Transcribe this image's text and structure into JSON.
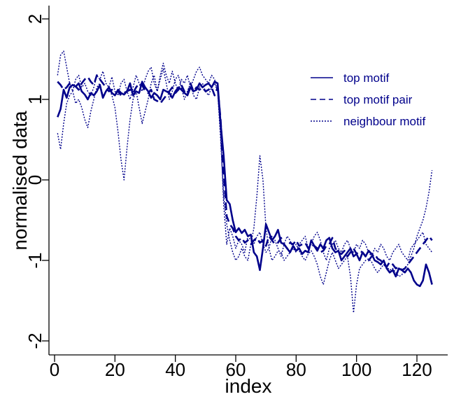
{
  "chart_data": {
    "type": "line",
    "xlabel": "index",
    "ylabel": "normalised data",
    "xlim": [
      -2,
      130
    ],
    "ylim": [
      -2.15,
      2.15
    ],
    "xticks": [
      0,
      20,
      40,
      60,
      80,
      100,
      120
    ],
    "yticks": [
      -2,
      -1,
      0,
      1,
      2
    ],
    "grid": false,
    "legend_position": "top-right",
    "color": "#00008B",
    "series": [
      {
        "name": "top motif",
        "style": "solid",
        "width": 2.6,
        "x": [
          1,
          2,
          3,
          4,
          5,
          6,
          7,
          8,
          9,
          10,
          11,
          12,
          13,
          14,
          15,
          16,
          17,
          18,
          19,
          20,
          21,
          22,
          23,
          24,
          25,
          26,
          27,
          28,
          29,
          30,
          31,
          32,
          33,
          34,
          35,
          36,
          37,
          38,
          39,
          40,
          41,
          42,
          43,
          44,
          45,
          46,
          47,
          48,
          49,
          50,
          51,
          52,
          53,
          54,
          55,
          56,
          57,
          58,
          59,
          60,
          61,
          62,
          63,
          64,
          65,
          66,
          67,
          68,
          69,
          70,
          71,
          72,
          73,
          74,
          75,
          76,
          77,
          78,
          79,
          80,
          81,
          82,
          83,
          84,
          85,
          86,
          87,
          88,
          89,
          90,
          91,
          92,
          93,
          94,
          95,
          96,
          97,
          98,
          99,
          100,
          101,
          102,
          103,
          104,
          105,
          106,
          107,
          108,
          109,
          110,
          111,
          112,
          113,
          114,
          115,
          116,
          117,
          118,
          119,
          120,
          121,
          122,
          123,
          124,
          125
        ],
        "y": [
          0.78,
          0.88,
          1.12,
          1.02,
          1.15,
          1.18,
          1.16,
          1.2,
          1.1,
          1.06,
          1.0,
          1.08,
          1.05,
          1.1,
          1.18,
          1.02,
          1.1,
          1.15,
          1.08,
          1.05,
          1.12,
          1.08,
          1.06,
          1.1,
          1.2,
          1.05,
          1.1,
          1.08,
          1.22,
          1.15,
          1.1,
          1.02,
          1.08,
          1.05,
          1.0,
          1.12,
          1.1,
          1.08,
          1.02,
          1.1,
          1.15,
          1.12,
          1.08,
          1.05,
          1.15,
          1.1,
          1.12,
          1.2,
          1.15,
          1.18,
          1.2,
          1.15,
          1.22,
          1.2,
          0.7,
          0.3,
          -0.25,
          -0.3,
          -0.5,
          -0.65,
          -0.6,
          -0.66,
          -0.62,
          -0.7,
          -0.68,
          -0.9,
          -0.95,
          -1.12,
          -0.85,
          -0.55,
          -0.65,
          -0.75,
          -0.7,
          -0.62,
          -0.78,
          -0.8,
          -0.85,
          -0.9,
          -0.82,
          -0.88,
          -0.85,
          -0.92,
          -0.88,
          -0.9,
          -0.75,
          -0.82,
          -0.88,
          -0.8,
          -0.85,
          -0.75,
          -0.72,
          -0.85,
          -0.9,
          -0.88,
          -1.0,
          -0.95,
          -0.9,
          -0.85,
          -0.95,
          -0.92,
          -1.0,
          -0.9,
          -0.95,
          -0.88,
          -0.92,
          -1.0,
          -1.02,
          -1.05,
          -1.0,
          -1.1,
          -1.15,
          -1.12,
          -1.2,
          -1.1,
          -1.12,
          -1.15,
          -1.1,
          -1.15,
          -1.25,
          -1.3,
          -1.32,
          -1.25,
          -1.05,
          -1.15,
          -1.3
        ]
      },
      {
        "name": "top motif pair",
        "style": "dashed",
        "width": 2.6,
        "x": [
          1,
          2,
          3,
          4,
          5,
          6,
          7,
          8,
          9,
          10,
          11,
          12,
          13,
          14,
          15,
          16,
          17,
          18,
          19,
          20,
          21,
          22,
          23,
          24,
          25,
          26,
          27,
          28,
          29,
          30,
          31,
          32,
          33,
          34,
          35,
          36,
          37,
          38,
          39,
          40,
          41,
          42,
          43,
          44,
          45,
          46,
          47,
          48,
          49,
          50,
          51,
          52,
          53,
          54,
          55,
          56,
          57,
          58,
          59,
          60,
          61,
          62,
          63,
          64,
          65,
          66,
          67,
          68,
          69,
          70,
          71,
          72,
          73,
          74,
          75,
          76,
          77,
          78,
          79,
          80,
          81,
          82,
          83,
          84,
          85,
          86,
          87,
          88,
          89,
          90,
          91,
          92,
          93,
          94,
          95,
          96,
          97,
          98,
          99,
          100,
          101,
          102,
          103,
          104,
          105,
          106,
          107,
          108,
          109,
          110,
          111,
          112,
          113,
          114,
          115,
          116,
          117,
          118,
          119,
          120,
          121,
          122,
          123,
          124,
          125
        ],
        "y": [
          1.22,
          1.18,
          1.12,
          1.15,
          1.2,
          1.18,
          1.16,
          1.12,
          1.2,
          1.25,
          1.28,
          1.22,
          1.18,
          1.3,
          1.25,
          1.2,
          1.15,
          1.1,
          1.12,
          1.08,
          1.1,
          1.05,
          1.08,
          1.1,
          1.12,
          1.08,
          1.15,
          1.2,
          1.18,
          1.1,
          1.08,
          1.12,
          1.0,
          0.98,
          0.95,
          1.0,
          1.05,
          1.1,
          1.15,
          1.08,
          1.12,
          1.18,
          1.1,
          1.05,
          1.2,
          1.1,
          1.15,
          1.12,
          1.15,
          1.1,
          1.12,
          1.15,
          1.05,
          1.15,
          0.75,
          0.1,
          -0.45,
          -0.55,
          -0.6,
          -0.7,
          -0.75,
          -0.72,
          -0.78,
          -0.75,
          -0.8,
          -0.75,
          -0.72,
          -0.78,
          -0.75,
          -0.82,
          -0.7,
          -0.75,
          -0.8,
          -0.78,
          -0.72,
          -0.8,
          -0.85,
          -0.78,
          -0.8,
          -0.75,
          -0.82,
          -0.8,
          -0.78,
          -0.85,
          -0.8,
          -0.82,
          -0.85,
          -0.9,
          -0.88,
          -0.82,
          -0.8,
          -0.72,
          -0.85,
          -0.9,
          -0.92,
          -0.88,
          -0.95,
          -0.9,
          -0.85,
          -0.92,
          -0.88,
          -0.9,
          -0.95,
          -1.0,
          -0.95,
          -0.92,
          -0.98,
          -1.0,
          -1.05,
          -1.08,
          -1.02,
          -1.05,
          -1.1,
          -1.08,
          -1.12,
          -1.1,
          -1.05,
          -1.0,
          -0.95,
          -0.9,
          -0.85,
          -0.8,
          -0.75,
          -0.7,
          -0.75
        ]
      },
      {
        "name": "neighbour motif",
        "style": "dotted",
        "width": 1.4,
        "x": [
          1,
          2,
          3,
          4,
          5,
          6,
          7,
          8,
          9,
          10,
          11,
          12,
          13,
          14,
          15,
          16,
          17,
          18,
          19,
          20,
          21,
          22,
          23,
          24,
          25,
          26,
          27,
          28,
          29,
          30,
          31,
          32,
          33,
          34,
          35,
          36,
          37,
          38,
          39,
          40,
          41,
          42,
          43,
          44,
          45,
          46,
          47,
          48,
          49,
          50,
          51,
          52,
          53,
          54,
          55,
          56,
          57,
          58,
          59,
          60,
          61,
          62,
          63,
          64,
          65,
          66,
          67,
          68,
          69,
          70,
          71,
          72,
          73,
          74,
          75,
          76,
          77,
          78,
          79,
          80,
          81,
          82,
          83,
          84,
          85,
          86,
          87,
          88,
          89,
          90,
          91,
          92,
          93,
          94,
          95,
          96,
          97,
          98,
          99,
          100,
          101,
          102,
          103,
          104,
          105,
          106,
          107,
          108,
          109,
          110,
          111,
          112,
          113,
          114,
          115,
          116,
          117,
          118,
          119,
          120,
          121,
          122,
          123,
          124,
          125
        ],
        "y": [
          0.58,
          0.38,
          0.7,
          0.95,
          1.05,
          1.1,
          0.95,
          1.0,
          0.9,
          0.75,
          0.65,
          0.85,
          1.0,
          1.15,
          1.2,
          1.05,
          1.1,
          1.15,
          1.05,
          0.9,
          0.6,
          0.25,
          0.0,
          0.4,
          0.75,
          1.0,
          1.1,
          0.9,
          0.7,
          0.85,
          1.0,
          1.2,
          1.3,
          1.1,
          1.25,
          1.38,
          1.2,
          1.0,
          1.1,
          1.25,
          1.3,
          1.15,
          1.0,
          1.1,
          1.2,
          1.05,
          1.0,
          1.15,
          1.2,
          1.1,
          1.05,
          1.15,
          1.2,
          1.1,
          0.5,
          -0.2,
          -0.55,
          -0.75,
          -0.9,
          -1.0,
          -0.95,
          -0.85,
          -0.95,
          -1.0,
          -0.8,
          -0.6,
          -0.2,
          0.3,
          0.0,
          -0.6,
          -0.85,
          -1.0,
          -0.95,
          -0.88,
          -0.9,
          -1.0,
          -0.95,
          -0.9,
          -0.85,
          -0.8,
          -0.88,
          -0.95,
          -1.0,
          -0.92,
          -0.88,
          -0.95,
          -1.05,
          -1.2,
          -1.3,
          -1.15,
          -1.0,
          -0.9,
          -1.0,
          -1.1,
          -1.05,
          -1.0,
          -0.95,
          -1.2,
          -1.65,
          -1.3,
          -1.1,
          -1.05,
          -1.0,
          -0.98,
          -1.02,
          -1.1,
          -1.15,
          -1.1,
          -1.05,
          -1.08,
          -1.12,
          -1.1,
          -1.15,
          -1.2,
          -1.18,
          -1.1,
          -1.05,
          -0.95,
          -0.85,
          -0.7,
          -0.6,
          -0.5,
          -0.35,
          -0.15,
          0.12
        ]
      },
      {
        "name": "",
        "style": "dotted",
        "width": 1.4,
        "x": [
          1,
          2,
          3,
          4,
          5,
          6,
          7,
          8,
          9,
          10,
          11,
          12,
          13,
          14,
          15,
          16,
          17,
          18,
          19,
          20,
          21,
          22,
          23,
          24,
          25,
          26,
          27,
          28,
          29,
          30,
          31,
          32,
          33,
          34,
          35,
          36,
          37,
          38,
          39,
          40,
          41,
          42,
          43,
          44,
          45,
          46,
          47,
          48,
          49,
          50,
          51,
          52,
          53,
          54,
          55,
          56,
          57,
          58,
          59,
          60,
          61,
          62,
          63,
          64,
          65,
          66,
          67,
          68,
          69,
          70,
          71,
          72,
          73,
          74,
          75,
          76,
          77,
          78,
          79,
          80,
          81,
          82,
          83,
          84,
          85,
          86,
          87,
          88,
          89,
          90,
          91,
          92,
          93,
          94,
          95,
          96,
          97,
          98,
          99,
          100,
          101,
          102,
          103,
          104,
          105,
          106,
          107,
          108,
          109,
          110,
          111,
          112,
          113,
          114,
          115,
          116,
          117,
          118,
          119,
          120,
          121,
          122,
          123,
          124,
          125
        ],
        "y": [
          1.3,
          1.55,
          1.6,
          1.4,
          1.2,
          1.1,
          1.25,
          1.3,
          1.15,
          1.2,
          1.1,
          1.05,
          1.15,
          1.3,
          1.25,
          1.35,
          1.2,
          1.15,
          1.28,
          1.1,
          1.05,
          1.2,
          1.25,
          1.1,
          1.0,
          1.15,
          1.3,
          1.2,
          1.1,
          1.25,
          1.35,
          1.4,
          1.2,
          1.1,
          1.3,
          1.45,
          1.3,
          1.2,
          1.35,
          1.2,
          1.1,
          1.25,
          1.2,
          1.3,
          1.15,
          1.25,
          1.35,
          1.4,
          1.3,
          1.25,
          1.2,
          1.3,
          1.25,
          1.1,
          0.6,
          -0.3,
          -0.8,
          -0.6,
          -0.7,
          -0.85,
          -0.75,
          -0.8,
          -0.9,
          -0.7,
          -0.75,
          -0.8,
          -0.7,
          -0.65,
          -0.8,
          -0.9,
          -0.85,
          -0.7,
          -0.75,
          -0.85,
          -0.95,
          -0.8,
          -0.7,
          -0.75,
          -0.85,
          -0.9,
          -0.8,
          -0.75,
          -0.7,
          -0.85,
          -0.8,
          -0.7,
          -0.65,
          -0.75,
          -0.9,
          -1.0,
          -0.85,
          -0.8,
          -0.75,
          -0.85,
          -0.9,
          -0.8,
          -0.75,
          -0.85,
          -0.9,
          -0.8,
          -0.85,
          -0.75,
          -0.8,
          -0.9,
          -0.95,
          -0.85,
          -0.9,
          -0.8,
          -0.85,
          -0.95,
          -1.0,
          -0.9,
          -0.85,
          -0.8,
          -0.9,
          -0.95,
          -1.0,
          -0.85,
          -0.8,
          -0.75,
          -0.7,
          -0.65,
          -0.8,
          -0.85,
          -0.9
        ]
      }
    ]
  }
}
